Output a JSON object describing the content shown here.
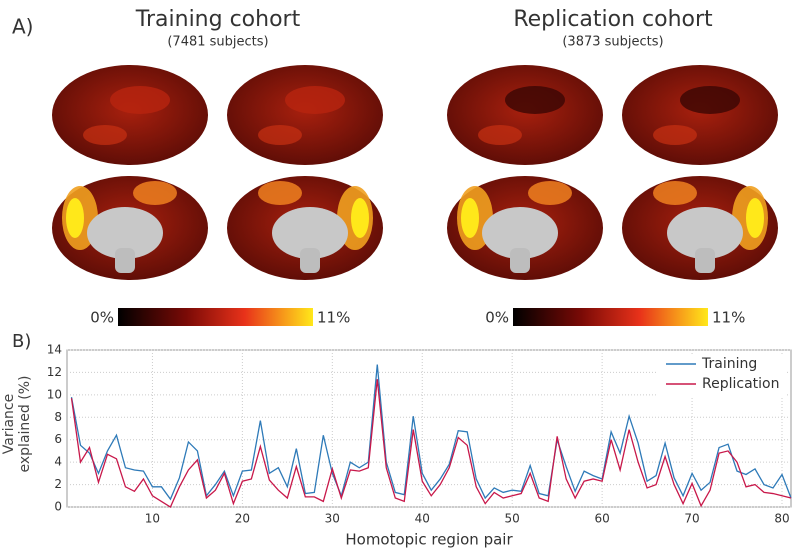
{
  "panel_a": {
    "label": "A)",
    "cohorts": [
      {
        "title": "Training cohort",
        "subtitle": "(7481 subjects)",
        "colorbar_min": "0%",
        "colorbar_max": "11%"
      },
      {
        "title": "Replication cohort",
        "subtitle": "(3873 subjects)",
        "colorbar_min": "0%",
        "colorbar_max": "11%"
      }
    ]
  },
  "panel_b_label": "B)",
  "chart_data": {
    "type": "line",
    "xlabel": "Homotopic region pair",
    "ylabel": "Variance explained (%)",
    "x": [
      1,
      2,
      3,
      4,
      5,
      6,
      7,
      8,
      9,
      10,
      11,
      12,
      13,
      14,
      15,
      16,
      17,
      18,
      19,
      20,
      21,
      22,
      23,
      24,
      25,
      26,
      27,
      28,
      29,
      30,
      31,
      32,
      33,
      34,
      35,
      36,
      37,
      38,
      39,
      40,
      41,
      42,
      43,
      44,
      45,
      46,
      47,
      48,
      49,
      50,
      51,
      52,
      53,
      54,
      55,
      56,
      57,
      58,
      59,
      60,
      61,
      62,
      63,
      64,
      65,
      66,
      67,
      68,
      69,
      70,
      71,
      72,
      73,
      74,
      75,
      76,
      77,
      78,
      79,
      80,
      81
    ],
    "series": [
      {
        "name": "Training",
        "color": "#2e7ab8",
        "values": [
          9.8,
          5.5,
          4.8,
          3.0,
          5.0,
          6.4,
          3.5,
          3.3,
          3.2,
          1.8,
          1.8,
          0.7,
          2.6,
          5.8,
          5.0,
          1.0,
          2.0,
          3.2,
          1.0,
          3.2,
          3.3,
          7.7,
          3.0,
          3.5,
          1.8,
          5.2,
          1.2,
          1.3,
          6.4,
          3.0,
          1.0,
          4.0,
          3.5,
          4.0,
          12.7,
          4.0,
          1.3,
          1.1,
          8.1,
          3.0,
          1.5,
          2.5,
          3.8,
          6.8,
          6.7,
          2.5,
          0.8,
          1.7,
          1.3,
          1.5,
          1.4,
          3.7,
          1.2,
          1.0,
          6.0,
          3.6,
          1.4,
          3.2,
          2.8,
          2.5,
          6.7,
          4.8,
          8.1,
          5.7,
          2.3,
          2.8,
          5.7,
          2.6,
          1.0,
          3.0,
          1.5,
          2.2,
          5.3,
          5.6,
          3.2,
          2.9,
          3.4,
          2.0,
          1.7,
          2.9,
          0.8
        ]
      },
      {
        "name": "Replication",
        "color": "#c8184a",
        "values": [
          9.7,
          4.0,
          5.3,
          2.2,
          4.7,
          4.3,
          1.8,
          1.4,
          2.5,
          1.0,
          0.5,
          0.0,
          1.8,
          3.3,
          4.2,
          0.8,
          1.5,
          3.0,
          0.3,
          2.3,
          2.5,
          5.4,
          2.4,
          1.5,
          0.8,
          3.6,
          0.9,
          0.9,
          0.5,
          3.4,
          0.8,
          3.3,
          3.2,
          3.5,
          11.4,
          3.5,
          0.8,
          0.5,
          6.9,
          2.3,
          1.0,
          2.0,
          3.5,
          6.2,
          5.5,
          1.8,
          0.3,
          1.3,
          0.8,
          1.0,
          1.2,
          3.0,
          0.8,
          0.5,
          6.3,
          2.5,
          0.8,
          2.3,
          2.5,
          2.3,
          6.0,
          3.3,
          6.9,
          4.0,
          1.7,
          2.0,
          4.5,
          2.0,
          0.3,
          2.1,
          0.1,
          1.5,
          4.8,
          5.0,
          4.0,
          1.8,
          2.0,
          1.3,
          1.2,
          1.0,
          0.8
        ]
      }
    ],
    "xlim": [
      0.5,
      81
    ],
    "ylim": [
      0,
      14
    ],
    "xticks": [
      10,
      20,
      30,
      40,
      50,
      60,
      70,
      80
    ],
    "yticks": [
      0,
      2,
      4,
      6,
      8,
      10,
      12,
      14
    ],
    "grid": true,
    "legend": "upper right"
  }
}
